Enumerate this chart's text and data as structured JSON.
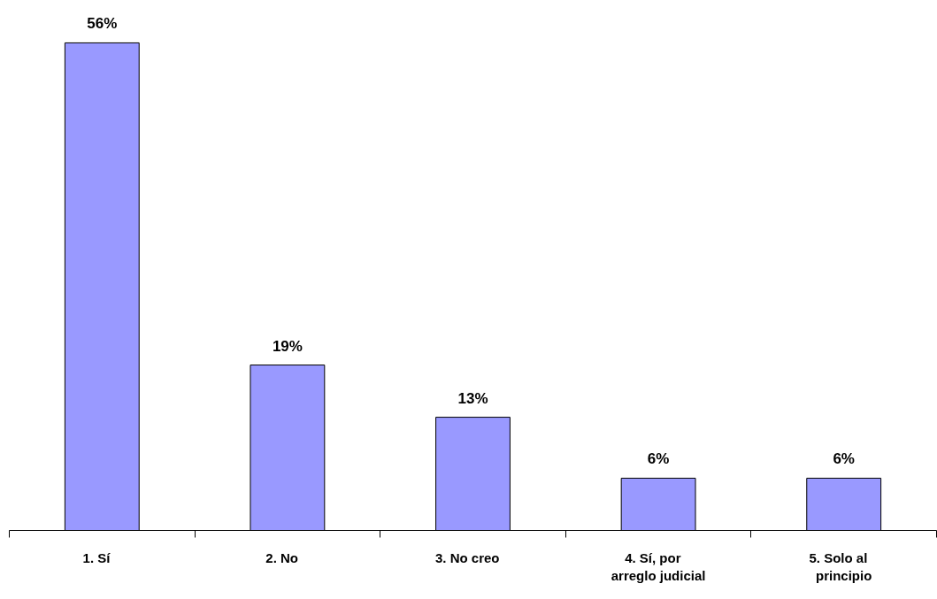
{
  "chart_data": {
    "type": "bar",
    "categories": [
      "1.    Sí",
      "2.    No",
      "3.    No creo",
      "4.    Sí, por\narreglo judicial",
      "5.    Solo al\nprincipio"
    ],
    "values": [
      56,
      19,
      13,
      6,
      6
    ],
    "value_labels": [
      "56%",
      "19%",
      "13%",
      "6%",
      "6%"
    ],
    "color": "#9999ff"
  }
}
